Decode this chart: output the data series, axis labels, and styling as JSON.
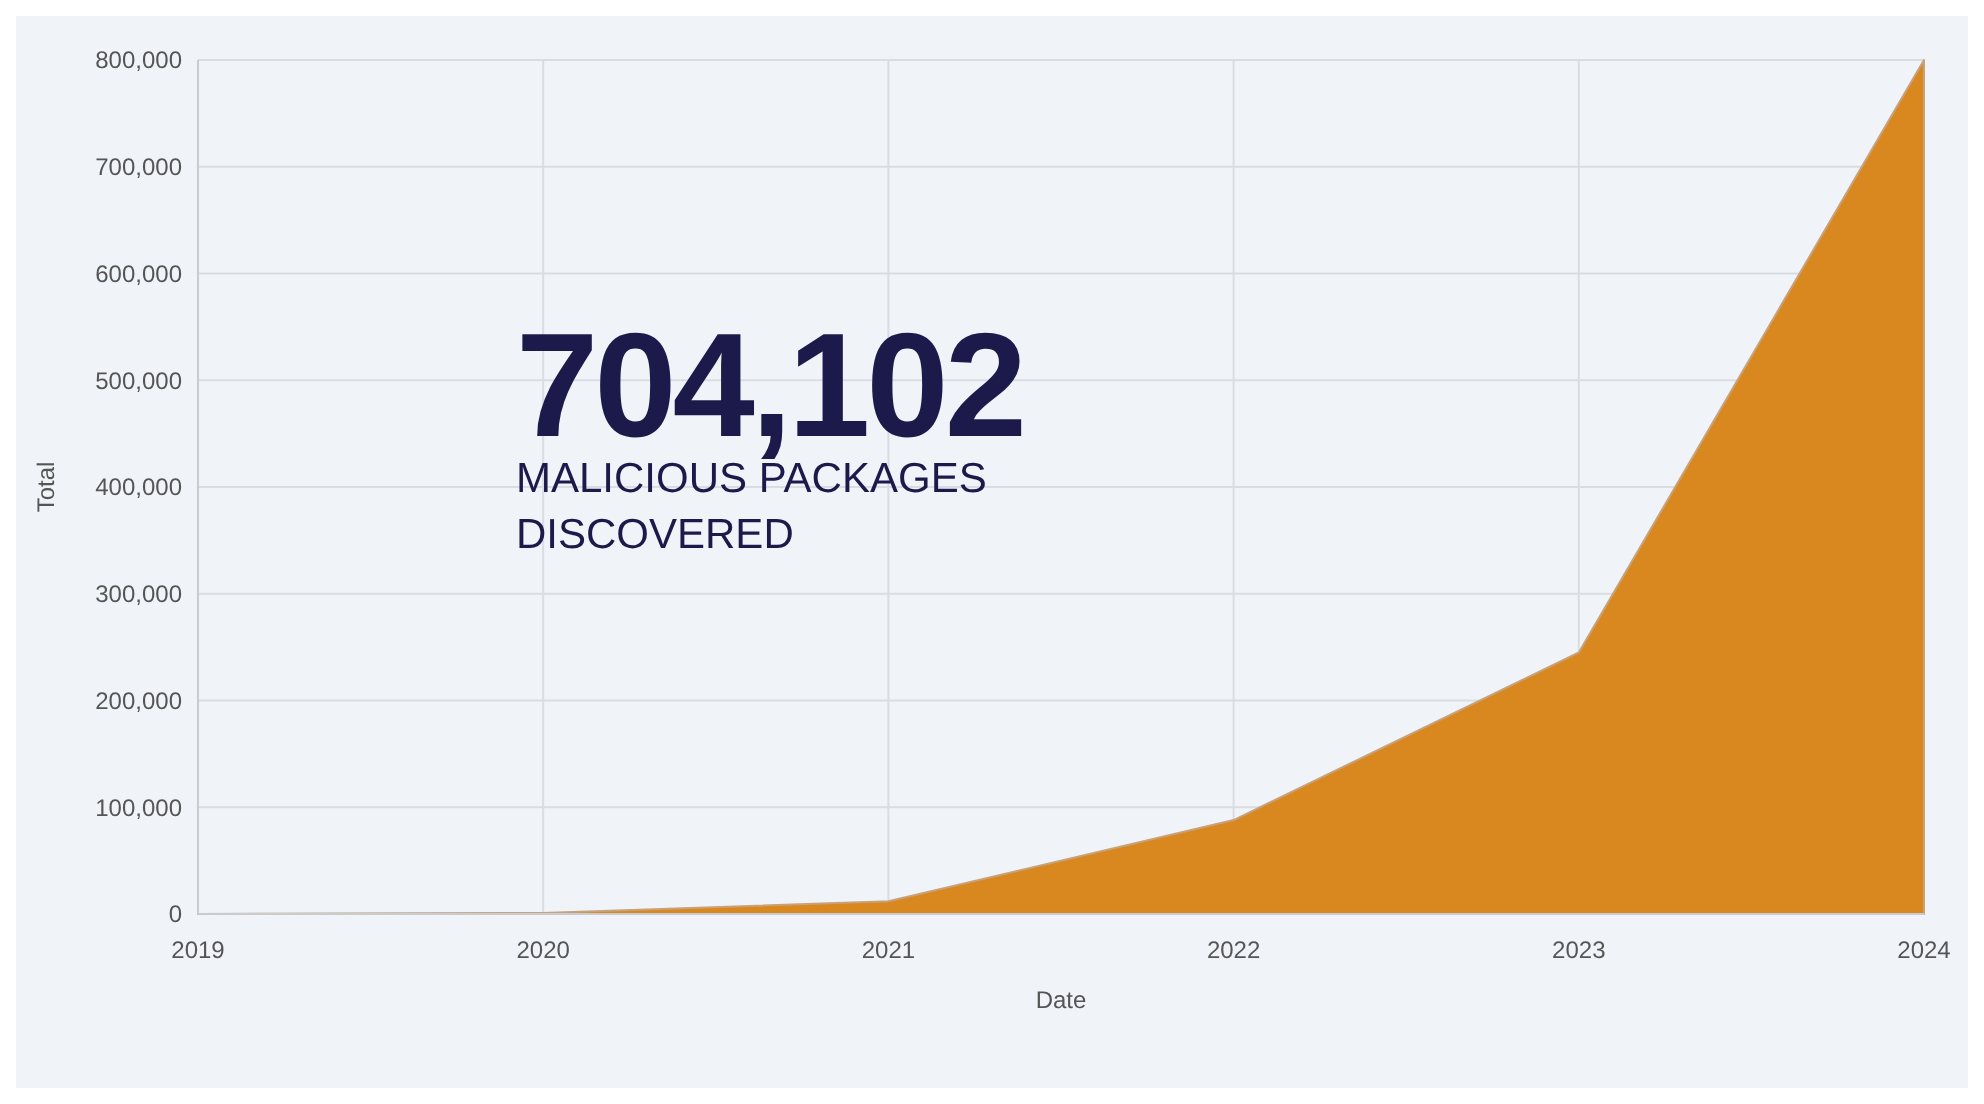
{
  "chart_data": {
    "type": "area",
    "xlabel": "Date",
    "ylabel": "Total",
    "x": [
      2019,
      2020,
      2021,
      2022,
      2023,
      2024
    ],
    "series": [
      {
        "color": "#d9881f",
        "values": [
          0,
          1000,
          12000,
          88000,
          245000,
          800000
        ]
      }
    ],
    "xlim": [
      2019,
      2024
    ],
    "xticks": [
      2019,
      2020,
      2021,
      2022,
      2023,
      2024
    ],
    "ylim": [
      0,
      800000
    ],
    "yticks": [
      {
        "value": 0,
        "label": "0"
      },
      {
        "value": 100000,
        "label": "100,000"
      },
      {
        "value": 200000,
        "label": "200,000"
      },
      {
        "value": 300000,
        "label": "300,000"
      },
      {
        "value": 400000,
        "label": "400,000"
      },
      {
        "value": 500000,
        "label": "500,000"
      },
      {
        "value": 600000,
        "label": "600,000"
      },
      {
        "value": 700000,
        "label": "700,000"
      },
      {
        "value": 800000,
        "label": "800,000"
      }
    ],
    "grid": true,
    "annotations": [
      "704,102",
      "MALICIOUS PACKAGES",
      "DISCOVERED"
    ]
  }
}
